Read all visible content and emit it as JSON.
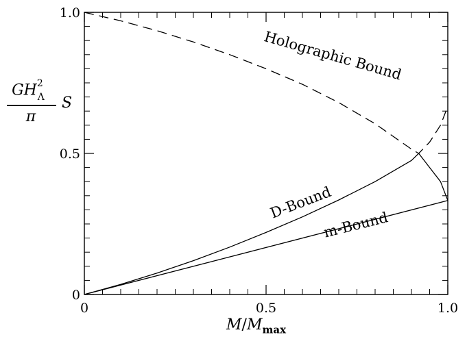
{
  "chart_data": {
    "type": "line",
    "title": "",
    "xlabel": {
      "var": "M",
      "sep": "/",
      "base": "M",
      "sub": "max"
    },
    "ylabel": {
      "G": "G",
      "H": "H",
      "sub": "Λ",
      "sup": "2",
      "den": "π",
      "S": "S"
    },
    "xlim": [
      0,
      1.0
    ],
    "ylim": [
      0,
      1.0
    ],
    "xticks": [
      {
        "value": 0,
        "label": "0"
      },
      {
        "value": 0.5,
        "label": "0.5"
      },
      {
        "value": 1.0,
        "label": "1.0"
      }
    ],
    "yticks": [
      {
        "value": 0,
        "label": "0"
      },
      {
        "value": 0.5,
        "label": "0.5"
      },
      {
        "value": 1.0,
        "label": "1.0"
      }
    ],
    "grid": false,
    "series": [
      {
        "name": "Holographic Bound",
        "style": "dashed",
        "x": [
          0,
          0.1,
          0.2,
          0.3,
          0.4,
          0.5,
          0.6,
          0.7,
          0.8,
          0.9,
          0.92,
          0.95,
          0.98,
          1.0
        ],
        "y": [
          1.0,
          0.97,
          0.935,
          0.895,
          0.85,
          0.8,
          0.745,
          0.68,
          0.605,
          0.515,
          0.5,
          0.54,
          0.6,
          0.667
        ]
      },
      {
        "name": "D-Bound",
        "style": "solid",
        "x": [
          0,
          0.1,
          0.2,
          0.3,
          0.4,
          0.5,
          0.6,
          0.7,
          0.8,
          0.9,
          0.92,
          0.95,
          0.98,
          1.0
        ],
        "y": [
          0,
          0.036,
          0.076,
          0.12,
          0.168,
          0.22,
          0.275,
          0.335,
          0.4,
          0.475,
          0.5,
          0.45,
          0.4,
          0.333
        ]
      },
      {
        "name": "m-Bound",
        "style": "solid",
        "x": [
          0,
          1.0
        ],
        "y": [
          0,
          0.333
        ]
      }
    ],
    "annotations": [
      {
        "text": "Holographic Bound",
        "x": 0.68,
        "y": 0.83,
        "rotate": 16
      },
      {
        "text": "D-Bound",
        "x": 0.6,
        "y": 0.31,
        "rotate": -21
      },
      {
        "text": "m-Bound",
        "x": 0.75,
        "y": 0.23,
        "rotate": -14
      }
    ]
  }
}
